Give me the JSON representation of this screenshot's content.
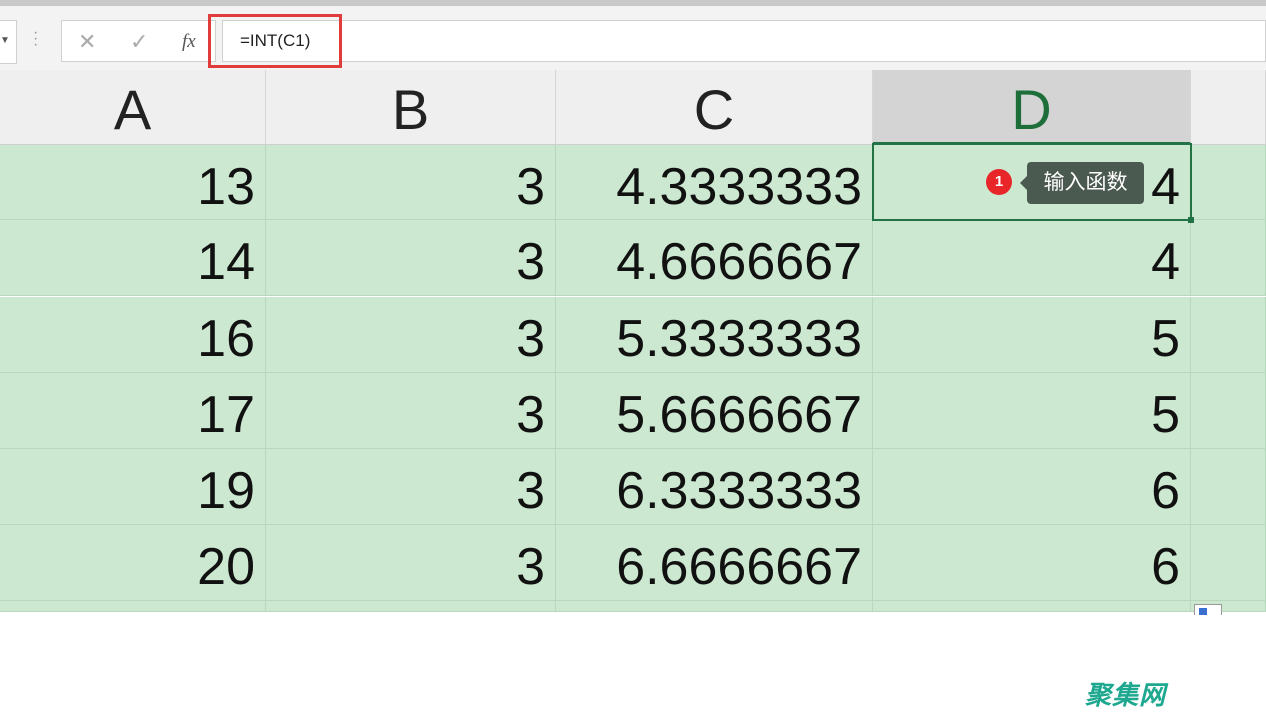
{
  "formula_bar": {
    "cancel_icon": "✕",
    "enter_icon": "✓",
    "fx_label": "fx",
    "formula": "=INT(C1)"
  },
  "columns": [
    "A",
    "B",
    "C",
    "D"
  ],
  "rows": [
    [
      "13",
      "3",
      "4.3333333",
      "4"
    ],
    [
      "14",
      "3",
      "4.6666667",
      "4"
    ],
    [
      "16",
      "3",
      "5.3333333",
      "5"
    ],
    [
      "17",
      "3",
      "5.6666667",
      "5"
    ],
    [
      "19",
      "3",
      "6.3333333",
      "6"
    ],
    [
      "20",
      "3",
      "6.6666667",
      "6"
    ]
  ],
  "tooltip": {
    "step": "1",
    "text": "输入函数"
  },
  "watermark": "聚集网",
  "colors": {
    "selection_green": "#217346",
    "cell_fill": "#cce8d0",
    "highlight": "#e03c3c"
  }
}
